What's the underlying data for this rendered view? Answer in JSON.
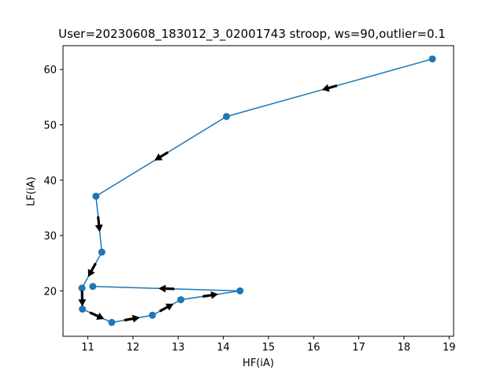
{
  "chart_data": {
    "type": "line",
    "title": "User=20230608_183012_3_02001743 stroop, ws=90,outlier=0.1",
    "xlabel": "HF(iA)",
    "ylabel": "LF(iA)",
    "xlim": [
      10.45,
      19.1
    ],
    "ylim": [
      11.8,
      64.3
    ],
    "xticks": [
      11,
      12,
      13,
      14,
      15,
      16,
      17,
      18,
      19
    ],
    "yticks": [
      20,
      30,
      40,
      50,
      60
    ],
    "grid": false,
    "line_color": "#1f77b4",
    "arrow_color": "#000000",
    "series": [
      {
        "x": [
          18.63,
          14.07,
          11.18,
          11.31,
          10.87,
          10.88,
          11.53,
          12.43,
          13.06,
          14.37,
          11.11
        ],
        "y": [
          61.9,
          51.5,
          37.1,
          27.0,
          20.5,
          16.7,
          14.3,
          15.6,
          18.4,
          20.0,
          20.8
        ],
        "markers": true,
        "arrows": "direction of travel at each segment midpoint"
      }
    ]
  }
}
